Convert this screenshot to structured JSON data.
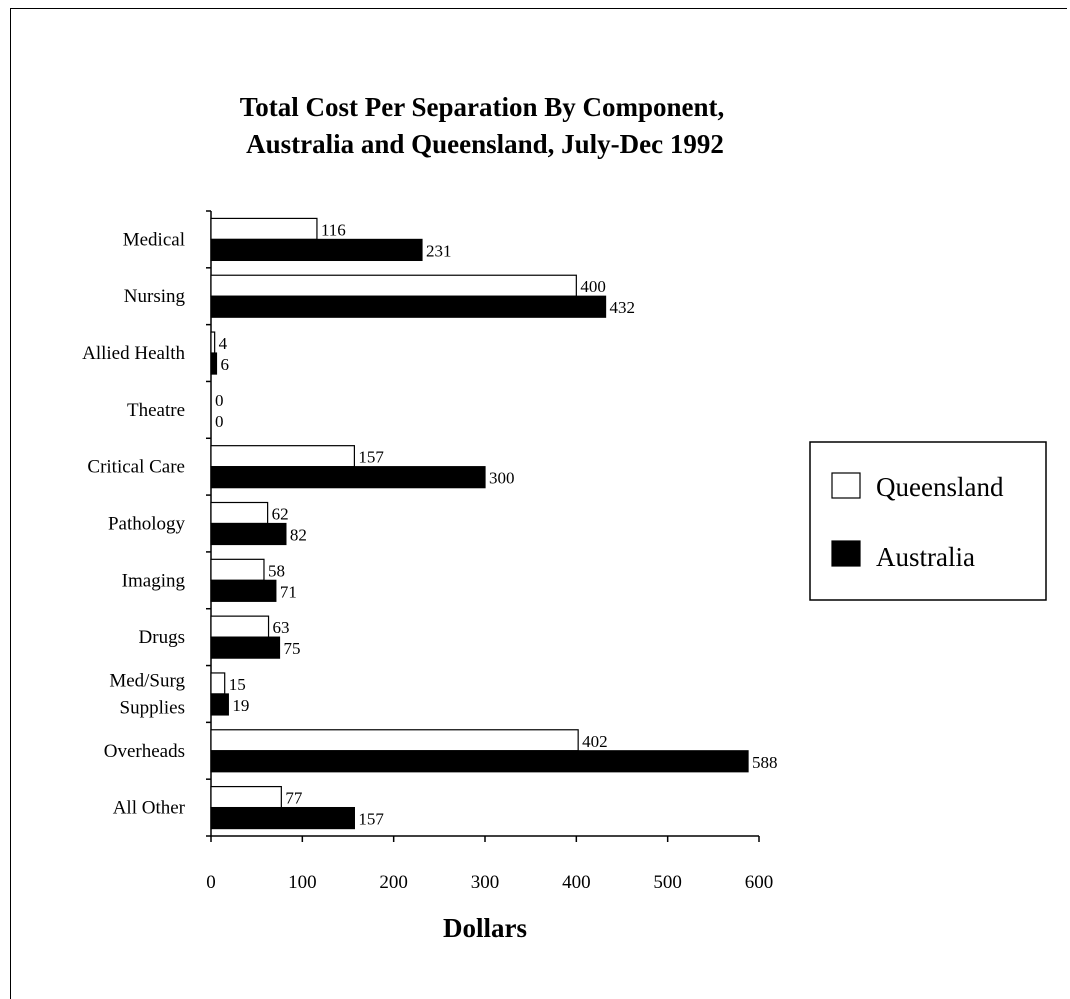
{
  "chart_data": {
    "type": "bar",
    "orientation": "horizontal",
    "title": "Total Cost Per Separation By Component,",
    "title_line2": "Australia and Queensland, July-Dec 1992",
    "xlabel": "Dollars",
    "ylabel": "",
    "xlim": [
      0,
      600
    ],
    "xticks": [
      "0",
      "100",
      "200",
      "300",
      "400",
      "500",
      "600"
    ],
    "grid": false,
    "legend_position": "right",
    "categories": [
      [
        "Medical"
      ],
      [
        "Nursing"
      ],
      [
        "Allied Health"
      ],
      [
        "Theatre"
      ],
      [
        "Critical Care"
      ],
      [
        "Pathology"
      ],
      [
        "Imaging"
      ],
      [
        "Drugs"
      ],
      [
        "Med/Surg",
        "Supplies"
      ],
      [
        "Overheads"
      ],
      [
        "All Other"
      ]
    ],
    "series": [
      {
        "name": "Queensland",
        "color": "#ffffff",
        "values": [
          116,
          400,
          4,
          0,
          157,
          62,
          58,
          63,
          15,
          402,
          77
        ]
      },
      {
        "name": "Australia",
        "color": "#000000",
        "values": [
          231,
          432,
          6,
          0,
          300,
          82,
          71,
          75,
          19,
          588,
          157
        ]
      }
    ]
  }
}
